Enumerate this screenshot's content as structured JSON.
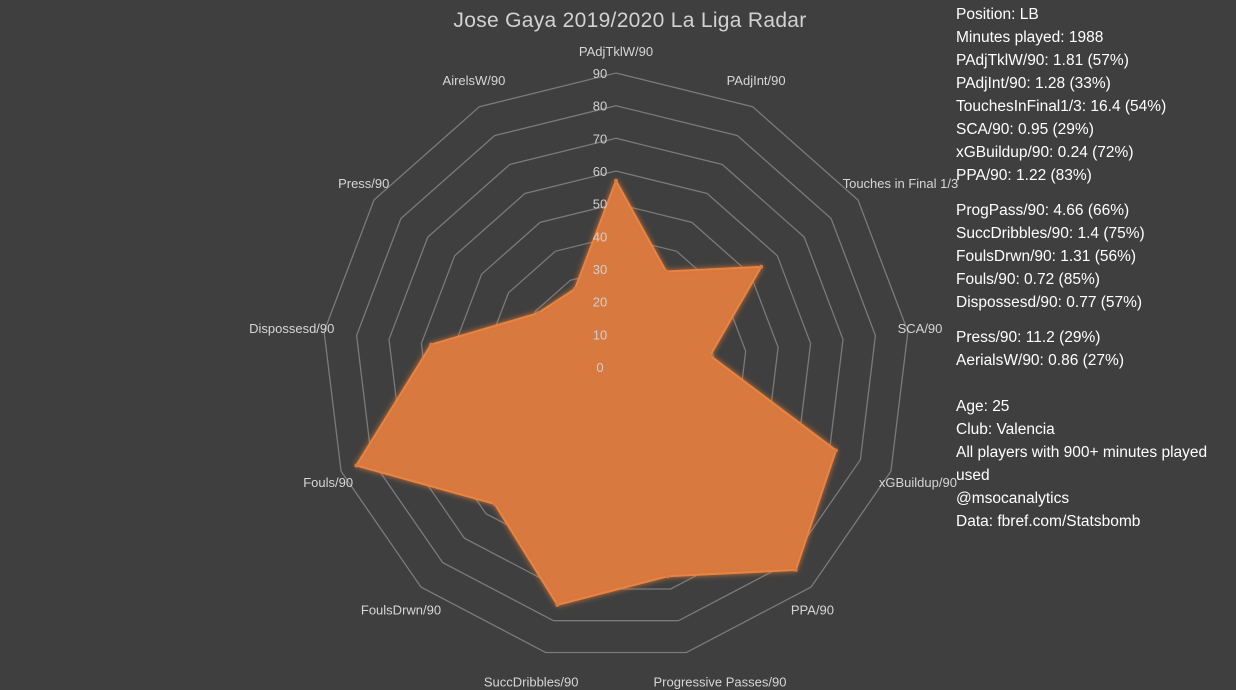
{
  "chart_data": {
    "type": "radar",
    "title": "Jose Gaya 2019/2020 La Liga Radar",
    "categories": [
      "PAdjTklW/90",
      "PAdjInt/90",
      "Touches in Final 1/3",
      "SCA/90",
      "xGBuildup/90",
      "PPA/90",
      "Progressive Passes/90",
      "SuccDribbles/90",
      "FoulsDrwn/90",
      "Fouls/90",
      "Dispossesd/90",
      "Press/90",
      "AirelsW/90"
    ],
    "values": [
      57,
      33,
      54,
      29,
      72,
      83,
      66,
      75,
      56,
      85,
      57,
      29,
      27
    ],
    "rlim": [
      0,
      90
    ],
    "ticks": [
      "0",
      "10",
      "20",
      "30",
      "40",
      "50",
      "60",
      "70",
      "80",
      "90"
    ],
    "fill_color": "#d9793f",
    "grid_color": "#7a7a7a",
    "legend": false
  },
  "info": {
    "group1": [
      "Position: LB",
      "Minutes played: 1988",
      "PAdjTklW/90: 1.81 (57%)",
      "PAdjInt/90: 1.28 (33%)",
      "TouchesInFinal1/3: 16.4 (54%)",
      "SCA/90: 0.95 (29%)",
      "xGBuildup/90: 0.24 (72%)",
      "PPA/90: 1.22 (83%)"
    ],
    "group2": [
      "ProgPass/90: 4.66 (66%)",
      "SuccDribbles/90: 1.4 (75%)",
      "FoulsDrwn/90: 1.31 (56%)",
      "Fouls/90: 0.72 (85%)",
      "Dispossesd/90: 0.77 (57%)"
    ],
    "group3": [
      "Press/90: 11.2 (29%)",
      "AerialsW/90: 0.86 (27%)"
    ],
    "group4": [
      "Age: 25",
      "Club: Valencia",
      "All players with 900+ minutes played used",
      "@msocanalytics",
      "Data: fbref.com/Statsbomb"
    ]
  }
}
